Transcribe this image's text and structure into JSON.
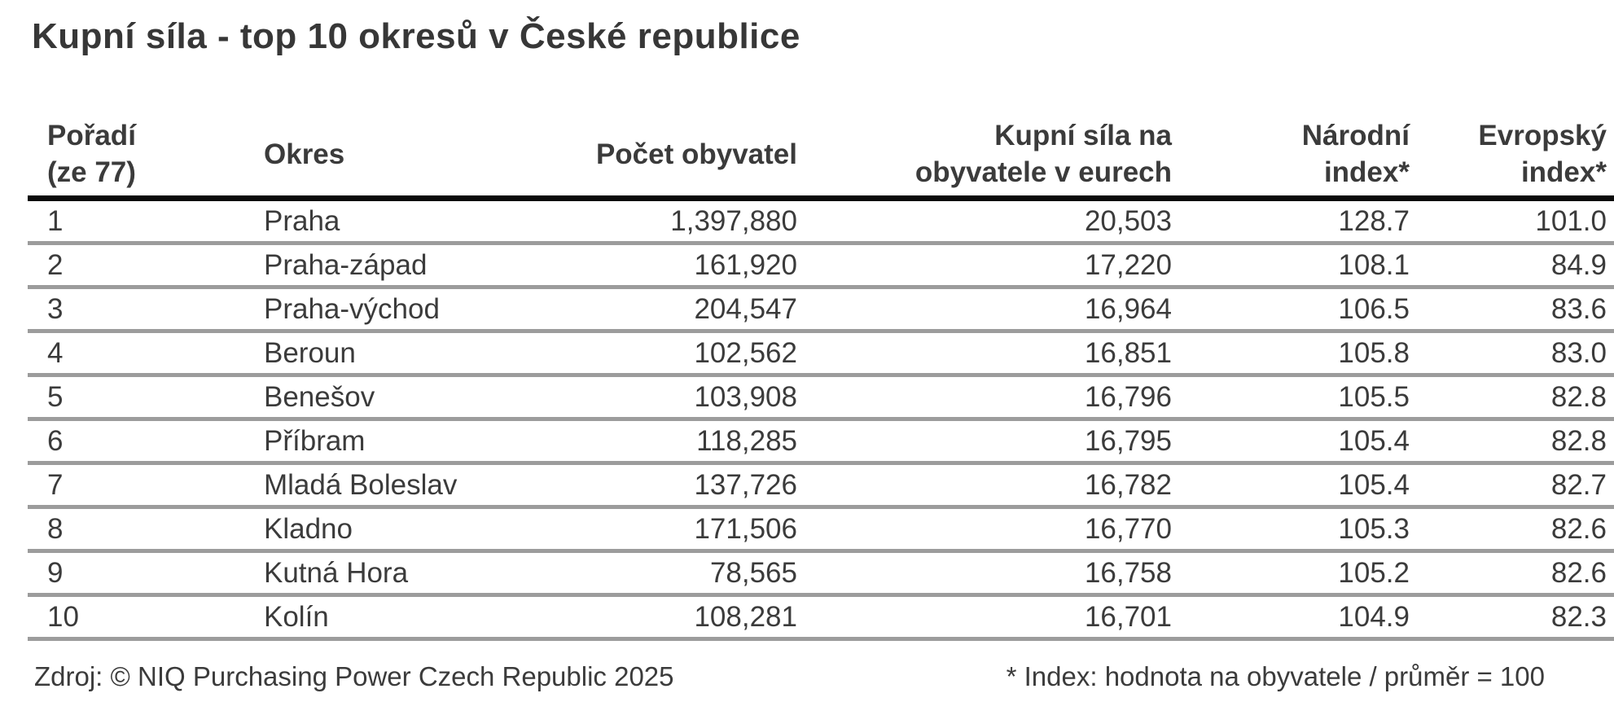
{
  "title": "Kupní síla - top 10 okresů v České republice",
  "table": {
    "columns": [
      {
        "label": "Pořadí\n(ze 77)"
      },
      {
        "label": "Okres"
      },
      {
        "label": "Počet obyvatel"
      },
      {
        "label": "Kupní síla na\nobyvatele v eurech"
      },
      {
        "label": "Národní\nindex*"
      },
      {
        "label": "Evropský\nindex*"
      }
    ],
    "fields": [
      "rank",
      "okres",
      "population",
      "power_eur",
      "national_index",
      "european_index"
    ],
    "rows": [
      {
        "rank": "1",
        "okres": "Praha",
        "population": "1,397,880",
        "power_eur": "20,503",
        "national_index": "128.7",
        "european_index": "101.0"
      },
      {
        "rank": "2",
        "okres": "Praha-západ",
        "population": "161,920",
        "power_eur": "17,220",
        "national_index": "108.1",
        "european_index": "84.9"
      },
      {
        "rank": "3",
        "okres": "Praha-východ",
        "population": "204,547",
        "power_eur": "16,964",
        "national_index": "106.5",
        "european_index": "83.6"
      },
      {
        "rank": "4",
        "okres": "Beroun",
        "population": "102,562",
        "power_eur": "16,851",
        "national_index": "105.8",
        "european_index": "83.0"
      },
      {
        "rank": "5",
        "okres": "Benešov",
        "population": "103,908",
        "power_eur": "16,796",
        "national_index": "105.5",
        "european_index": "82.8"
      },
      {
        "rank": "6",
        "okres": "Příbram",
        "population": "118,285",
        "power_eur": "16,795",
        "national_index": "105.4",
        "european_index": "82.8"
      },
      {
        "rank": "7",
        "okres": "Mladá Boleslav",
        "population": "137,726",
        "power_eur": "16,782",
        "national_index": "105.4",
        "european_index": "82.7"
      },
      {
        "rank": "8",
        "okres": "Kladno",
        "population": "171,506",
        "power_eur": "16,770",
        "national_index": "105.3",
        "european_index": "82.6"
      },
      {
        "rank": "9",
        "okres": "Kutná Hora",
        "population": "78,565",
        "power_eur": "16,758",
        "national_index": "105.2",
        "european_index": "82.6"
      },
      {
        "rank": "10",
        "okres": "Kolín",
        "population": "108,281",
        "power_eur": "16,701",
        "national_index": "104.9",
        "european_index": "82.3"
      }
    ]
  },
  "footer": {
    "source": "Zdroj: © NIQ Purchasing Power Czech Republic 2025",
    "note": "* Index: hodnota na obyvatele / průměr = 100"
  },
  "colors": {
    "text": "#3b3b3b",
    "header_rule": "#0a0a0a",
    "row_rule": "#9c9c9c",
    "background": "#ffffff"
  },
  "chart_data": {
    "type": "table",
    "title": "Kupní síla - top 10 okresů v České republice",
    "columns": [
      "Pořadí (ze 77)",
      "Okres",
      "Počet obyvatel",
      "Kupní síla na obyvatele v eurech",
      "Národní index*",
      "Evropský index*"
    ],
    "rows": [
      [
        1,
        "Praha",
        1397880,
        20503,
        128.7,
        101.0
      ],
      [
        2,
        "Praha-západ",
        161920,
        17220,
        108.1,
        84.9
      ],
      [
        3,
        "Praha-východ",
        204547,
        16964,
        106.5,
        83.6
      ],
      [
        4,
        "Beroun",
        102562,
        16851,
        105.8,
        83.0
      ],
      [
        5,
        "Benešov",
        103908,
        16796,
        105.5,
        82.8
      ],
      [
        6,
        "Příbram",
        118285,
        16795,
        105.4,
        82.8
      ],
      [
        7,
        "Mladá Boleslav",
        137726,
        16782,
        105.4,
        82.7
      ],
      [
        8,
        "Kladno",
        171506,
        16770,
        105.3,
        82.6
      ],
      [
        9,
        "Kutná Hora",
        78565,
        16758,
        105.2,
        82.6
      ],
      [
        10,
        "Kolín",
        108281,
        16701,
        104.9,
        82.3
      ]
    ]
  }
}
